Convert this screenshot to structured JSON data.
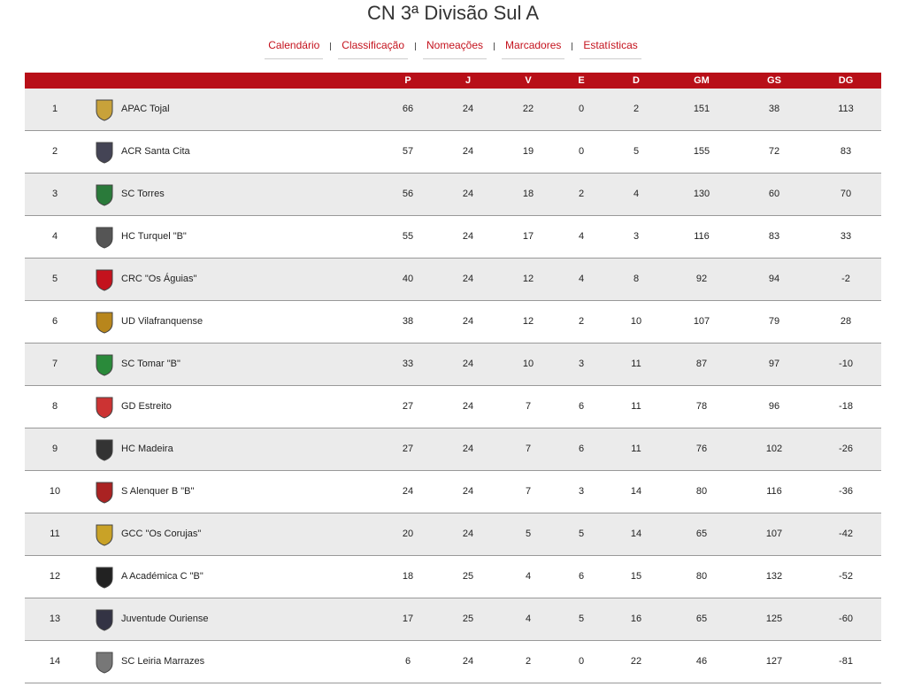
{
  "header": {
    "title": "CN 3ª Divisão Sul A"
  },
  "nav": [
    "Calendário",
    "Classificação",
    "Nomeações",
    "Marcadores",
    "Estatísticas"
  ],
  "table": {
    "columns": [
      "P",
      "J",
      "V",
      "E",
      "D",
      "GM",
      "GS",
      "DG"
    ],
    "rows": [
      [
        1,
        "APAC Tojal",
        66,
        24,
        22,
        0,
        2,
        151,
        38,
        113
      ],
      [
        2,
        "ACR Santa Cita",
        57,
        24,
        19,
        0,
        5,
        155,
        72,
        83
      ],
      [
        3,
        "SC Torres",
        56,
        24,
        18,
        2,
        4,
        130,
        60,
        70
      ],
      [
        4,
        "HC Turquel \"B\"",
        55,
        24,
        17,
        4,
        3,
        116,
        83,
        33
      ],
      [
        5,
        "CRC \"Os Águias\"",
        40,
        24,
        12,
        4,
        8,
        92,
        94,
        -2
      ],
      [
        6,
        "UD Vilafranquense",
        38,
        24,
        12,
        2,
        10,
        107,
        79,
        28
      ],
      [
        7,
        "SC Tomar \"B\"",
        33,
        24,
        10,
        3,
        11,
        87,
        97,
        -10
      ],
      [
        8,
        "GD Estreito",
        27,
        24,
        7,
        6,
        11,
        78,
        96,
        -18
      ],
      [
        9,
        "HC Madeira",
        27,
        24,
        7,
        6,
        11,
        76,
        102,
        -26
      ],
      [
        10,
        "S Alenquer B \"B\"",
        24,
        24,
        7,
        3,
        14,
        80,
        116,
        -36
      ],
      [
        11,
        "GCC \"Os Corujas\"",
        20,
        24,
        5,
        5,
        14,
        65,
        107,
        -42
      ],
      [
        12,
        "A Académica C \"B\"",
        18,
        25,
        4,
        6,
        15,
        80,
        132,
        -52
      ],
      [
        13,
        "Juventude Ouriense",
        17,
        25,
        4,
        5,
        16,
        65,
        125,
        -60
      ],
      [
        14,
        "SC Leiria Marrazes",
        6,
        24,
        2,
        0,
        22,
        46,
        127,
        -81
      ]
    ]
  }
}
